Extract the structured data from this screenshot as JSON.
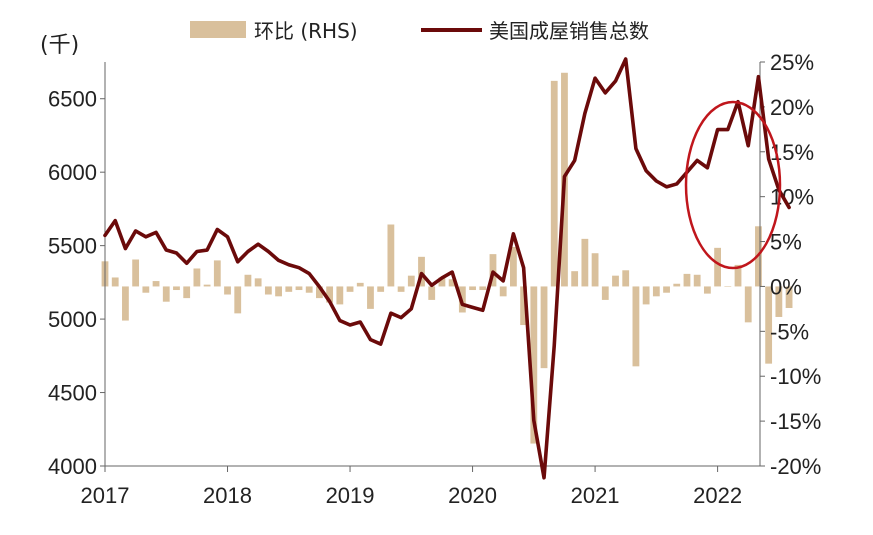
{
  "chart_data": {
    "type": "bar+line",
    "left_axis_unit": "(千)",
    "left_ticks": [
      4000,
      4500,
      5000,
      5500,
      6000,
      6500
    ],
    "left_range": [
      4000,
      6750
    ],
    "right_ticks": [
      "25%",
      "20%",
      "15%",
      "10%",
      "5%",
      "0%",
      "-5%",
      "-10%",
      "-15%",
      "-20%"
    ],
    "right_range": [
      -20,
      25
    ],
    "x_ticks": [
      "2017",
      "2018",
      "2019",
      "2020",
      "2021",
      "2022"
    ],
    "x_start": "2017-01",
    "legend": [
      {
        "name": "环比 (RHS)",
        "kind": "bar",
        "color": "#d9c09c"
      },
      {
        "name": "美国成屋销售总数",
        "kind": "line",
        "color": "#6b0a0a"
      }
    ],
    "series": [
      {
        "name": "美国成屋销售总数",
        "kind": "line",
        "color": "#6b0a0a",
        "values": [
          5570,
          5670,
          5480,
          5600,
          5560,
          5590,
          5470,
          5450,
          5380,
          5460,
          5470,
          5610,
          5560,
          5390,
          5460,
          5510,
          5460,
          5400,
          5370,
          5350,
          5310,
          5220,
          5120,
          4990,
          4960,
          4980,
          4860,
          4830,
          5040,
          5010,
          5070,
          5310,
          5230,
          5280,
          5320,
          5100,
          5080,
          5060,
          5320,
          5260,
          5580,
          5350,
          4310,
          3920,
          4820,
          5970,
          6080,
          6400,
          6640,
          6540,
          6620,
          6770,
          6160,
          6010,
          5940,
          5900,
          5920,
          6000,
          6080,
          6030,
          6290,
          6290,
          6480,
          6180,
          6650,
          6090,
          5880,
          5760
        ]
      },
      {
        "name": "环比 (RHS)",
        "kind": "bar",
        "color": "#d9c09c",
        "values": [
          2.8,
          1.0,
          -3.8,
          3.0,
          -0.7,
          0.6,
          -1.7,
          -0.4,
          -1.3,
          2.0,
          0.2,
          2.9,
          -0.9,
          -3.0,
          1.3,
          0.9,
          -0.9,
          -1.1,
          -0.6,
          -0.4,
          -0.7,
          -1.3,
          -1.8,
          -2.0,
          -0.6,
          0.4,
          -2.5,
          -0.6,
          6.9,
          -0.6,
          1.2,
          3.3,
          -1.5,
          1.0,
          0.8,
          -2.9,
          -0.4,
          -0.4,
          3.6,
          -1.1,
          4.4,
          -4.3,
          -17.5,
          -9.1,
          22.9,
          23.8,
          1.7,
          5.3,
          3.7,
          -1.5,
          1.2,
          1.8,
          -8.9,
          -2.0,
          -1.1,
          -0.7,
          0.3,
          1.4,
          1.3,
          -0.8,
          4.3,
          0.0,
          2.4,
          -4.0,
          6.7,
          -8.6,
          -3.4,
          -2.4
        ]
      }
    ]
  }
}
